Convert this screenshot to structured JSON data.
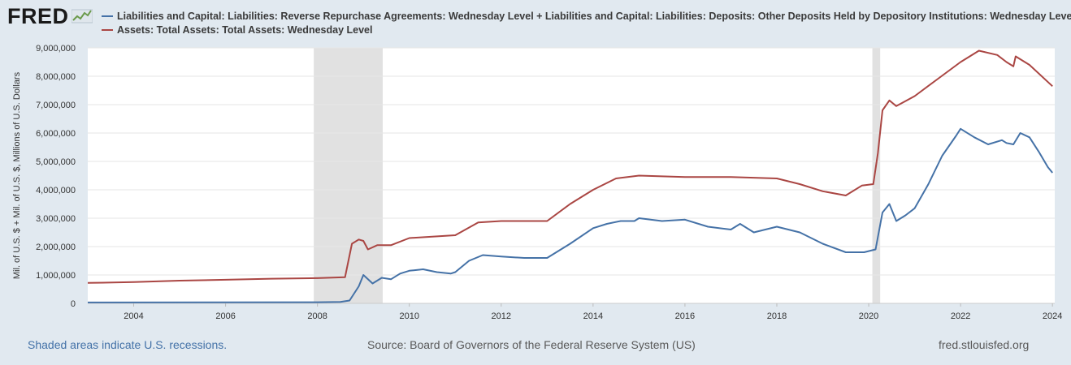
{
  "logo": {
    "text": "FRED",
    "icon": "fred-graph-logo-icon"
  },
  "colors": {
    "background": "#e1e9f0",
    "plot_bg": "#ffffff",
    "recession": "#e1e1e1",
    "series1": "#4572a7",
    "series2": "#aa4643"
  },
  "chart_data": {
    "type": "line",
    "ylabel": "Mil. of U.S. $ + Mil. of U.S. $, Millions of U.S. Dollars",
    "xlim": [
      2003.0,
      2024.05
    ],
    "ylim": [
      0,
      9000000
    ],
    "x_ticks": [
      2004,
      2006,
      2008,
      2010,
      2012,
      2014,
      2016,
      2018,
      2020,
      2022,
      2024
    ],
    "x_tick_labels": [
      "2004",
      "2006",
      "2008",
      "2010",
      "2012",
      "2014",
      "2016",
      "2018",
      "2020",
      "2022",
      "2024"
    ],
    "y_ticks": [
      0,
      1000000,
      2000000,
      3000000,
      4000000,
      5000000,
      6000000,
      7000000,
      8000000,
      9000000
    ],
    "y_tick_labels": [
      "0",
      "1,000,000",
      "2,000,000",
      "3,000,000",
      "4,000,000",
      "5,000,000",
      "6,000,000",
      "7,000,000",
      "8,000,000",
      "9,000,000"
    ],
    "grid": true,
    "recessions": [
      [
        2007.92,
        2009.42
      ],
      [
        2020.08,
        2020.25
      ]
    ],
    "series": [
      {
        "name": "Liabilities and Capital: Liabilities: Reverse Repurchase Agreements: Wednesday Level + Liabilities and Capital: Liabilities: Deposits: Other Deposits Held by Depository Institutions: Wednesday Level",
        "color": "#4572a7",
        "x": [
          2003.0,
          2008.0,
          2008.5,
          2008.7,
          2008.9,
          2009.0,
          2009.2,
          2009.4,
          2009.6,
          2009.8,
          2010.0,
          2010.3,
          2010.6,
          2010.9,
          2011.0,
          2011.3,
          2011.6,
          2012.0,
          2012.5,
          2013.0,
          2013.5,
          2014.0,
          2014.3,
          2014.6,
          2014.9,
          2015.0,
          2015.5,
          2016.0,
          2016.5,
          2017.0,
          2017.2,
          2017.5,
          2018.0,
          2018.5,
          2019.0,
          2019.5,
          2019.9,
          2020.15,
          2020.3,
          2020.45,
          2020.6,
          2020.8,
          2021.0,
          2021.3,
          2021.6,
          2021.9,
          2022.0,
          2022.3,
          2022.6,
          2022.9,
          2023.0,
          2023.15,
          2023.3,
          2023.5,
          2023.7,
          2023.9,
          2024.0
        ],
        "values": [
          30000,
          40000,
          50000,
          100000,
          600000,
          1000000,
          700000,
          900000,
          850000,
          1050000,
          1150000,
          1200000,
          1100000,
          1050000,
          1100000,
          1500000,
          1700000,
          1650000,
          1600000,
          1600000,
          2100000,
          2650000,
          2800000,
          2900000,
          2900000,
          3000000,
          2900000,
          2950000,
          2700000,
          2600000,
          2800000,
          2500000,
          2700000,
          2500000,
          2100000,
          1800000,
          1800000,
          1900000,
          3200000,
          3500000,
          2900000,
          3100000,
          3350000,
          4200000,
          5200000,
          5900000,
          6150000,
          5850000,
          5600000,
          5750000,
          5650000,
          5600000,
          6000000,
          5850000,
          5350000,
          4800000,
          4600000
        ]
      },
      {
        "name": "Assets: Total Assets: Total Assets: Wednesday Level",
        "color": "#aa4643",
        "x": [
          2003.0,
          2004.0,
          2005.0,
          2006.0,
          2007.0,
          2008.0,
          2008.6,
          2008.75,
          2008.9,
          2009.0,
          2009.1,
          2009.3,
          2009.6,
          2010.0,
          2010.5,
          2011.0,
          2011.5,
          2012.0,
          2012.5,
          2013.0,
          2013.5,
          2014.0,
          2014.5,
          2015.0,
          2016.0,
          2017.0,
          2018.0,
          2018.5,
          2019.0,
          2019.5,
          2019.85,
          2020.1,
          2020.2,
          2020.3,
          2020.45,
          2020.6,
          2021.0,
          2021.5,
          2022.0,
          2022.4,
          2022.8,
          2023.0,
          2023.15,
          2023.2,
          2023.5,
          2024.0
        ],
        "values": [
          720000,
          750000,
          800000,
          830000,
          870000,
          890000,
          920000,
          2100000,
          2250000,
          2200000,
          1900000,
          2050000,
          2050000,
          2300000,
          2350000,
          2400000,
          2850000,
          2900000,
          2900000,
          2900000,
          3500000,
          4000000,
          4400000,
          4500000,
          4450000,
          4450000,
          4400000,
          4200000,
          3950000,
          3800000,
          4150000,
          4200000,
          5300000,
          6800000,
          7150000,
          6950000,
          7300000,
          7900000,
          8500000,
          8900000,
          8750000,
          8500000,
          8350000,
          8700000,
          8400000,
          7650000
        ]
      }
    ]
  },
  "footer": {
    "recession_note": "Shaded areas indicate U.S. recessions.",
    "source": "Source: Board of Governors of the Federal Reserve System (US)",
    "site": "fred.stlouisfed.org"
  }
}
